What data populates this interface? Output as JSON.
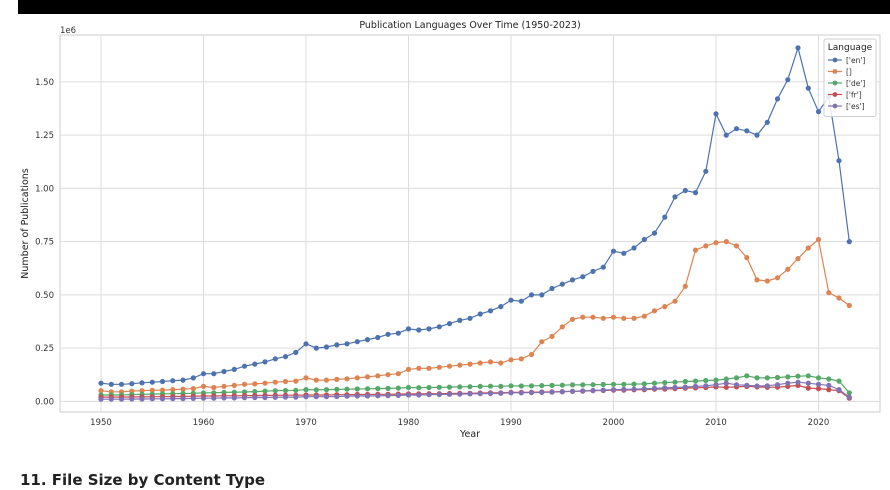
{
  "chart_data": {
    "type": "line",
    "title": "Publication Languages Over Time (1950-2023)",
    "xlabel": "Year",
    "ylabel": "Number of Publications",
    "y_offset_label": "1e6",
    "xlim": [
      1946,
      2026
    ],
    "ylim": [
      -0.05,
      1.72
    ],
    "x_ticks": [
      1950,
      1960,
      1970,
      1980,
      1990,
      2000,
      2010,
      2020
    ],
    "x_tick_labels": [
      "1950",
      "1960",
      "1970",
      "1980",
      "1990",
      "2000",
      "2010",
      "2020"
    ],
    "y_ticks": [
      0,
      0.25,
      0.5,
      0.75,
      1.0,
      1.25,
      1.5
    ],
    "y_tick_labels": [
      "0.00",
      "0.25",
      "0.50",
      "0.75",
      "1.00",
      "1.25",
      "1.50"
    ],
    "grid": true,
    "legend_title": "Language",
    "legend_position": "top-right",
    "x": [
      1950,
      1951,
      1952,
      1953,
      1954,
      1955,
      1956,
      1957,
      1958,
      1959,
      1960,
      1961,
      1962,
      1963,
      1964,
      1965,
      1966,
      1967,
      1968,
      1969,
      1970,
      1971,
      1972,
      1973,
      1974,
      1975,
      1976,
      1977,
      1978,
      1979,
      1980,
      1981,
      1982,
      1983,
      1984,
      1985,
      1986,
      1987,
      1988,
      1989,
      1990,
      1991,
      1992,
      1993,
      1994,
      1995,
      1996,
      1997,
      1998,
      1999,
      2000,
      2001,
      2002,
      2003,
      2004,
      2005,
      2006,
      2007,
      2008,
      2009,
      2010,
      2011,
      2012,
      2013,
      2014,
      2015,
      2016,
      2017,
      2018,
      2019,
      2020,
      2021,
      2022,
      2023
    ],
    "series": [
      {
        "name": "['en']",
        "color": "#4c72b0",
        "values": [
          0.085,
          0.08,
          0.08,
          0.083,
          0.087,
          0.09,
          0.093,
          0.097,
          0.1,
          0.11,
          0.13,
          0.13,
          0.14,
          0.15,
          0.165,
          0.175,
          0.185,
          0.2,
          0.21,
          0.23,
          0.27,
          0.25,
          0.255,
          0.265,
          0.27,
          0.28,
          0.29,
          0.3,
          0.315,
          0.32,
          0.34,
          0.335,
          0.34,
          0.35,
          0.365,
          0.38,
          0.39,
          0.41,
          0.425,
          0.445,
          0.475,
          0.47,
          0.5,
          0.5,
          0.53,
          0.55,
          0.57,
          0.585,
          0.61,
          0.63,
          0.705,
          0.695,
          0.72,
          0.76,
          0.79,
          0.865,
          0.96,
          0.99,
          0.98,
          1.08,
          1.35,
          1.25,
          1.28,
          1.27,
          1.25,
          1.31,
          1.42,
          1.51,
          1.66,
          1.47,
          1.36,
          1.43,
          1.13,
          0.75
        ]
      },
      {
        "name": "[]",
        "color": "#dd8452",
        "values": [
          0.05,
          0.045,
          0.045,
          0.048,
          0.05,
          0.052,
          0.053,
          0.055,
          0.057,
          0.06,
          0.07,
          0.065,
          0.07,
          0.075,
          0.08,
          0.082,
          0.085,
          0.09,
          0.093,
          0.095,
          0.11,
          0.1,
          0.1,
          0.103,
          0.106,
          0.11,
          0.115,
          0.12,
          0.125,
          0.13,
          0.15,
          0.155,
          0.155,
          0.16,
          0.165,
          0.17,
          0.175,
          0.18,
          0.185,
          0.18,
          0.195,
          0.2,
          0.22,
          0.28,
          0.305,
          0.35,
          0.385,
          0.395,
          0.395,
          0.39,
          0.395,
          0.39,
          0.39,
          0.4,
          0.425,
          0.445,
          0.47,
          0.54,
          0.71,
          0.73,
          0.745,
          0.75,
          0.73,
          0.675,
          0.57,
          0.565,
          0.58,
          0.62,
          0.67,
          0.72,
          0.76,
          0.51,
          0.485,
          0.45
        ]
      },
      {
        "name": "['de']",
        "color": "#55a868",
        "values": [
          0.03,
          0.03,
          0.03,
          0.032,
          0.033,
          0.034,
          0.035,
          0.036,
          0.037,
          0.038,
          0.04,
          0.04,
          0.042,
          0.043,
          0.044,
          0.046,
          0.048,
          0.05,
          0.051,
          0.052,
          0.055,
          0.054,
          0.055,
          0.056,
          0.057,
          0.058,
          0.059,
          0.06,
          0.061,
          0.062,
          0.065,
          0.064,
          0.065,
          0.066,
          0.067,
          0.068,
          0.069,
          0.07,
          0.071,
          0.07,
          0.073,
          0.072,
          0.073,
          0.074,
          0.075,
          0.076,
          0.077,
          0.077,
          0.078,
          0.079,
          0.08,
          0.08,
          0.081,
          0.082,
          0.085,
          0.088,
          0.09,
          0.093,
          0.095,
          0.098,
          0.1,
          0.105,
          0.11,
          0.12,
          0.11,
          0.11,
          0.112,
          0.115,
          0.118,
          0.12,
          0.11,
          0.105,
          0.095,
          0.04
        ]
      },
      {
        "name": "['fr']",
        "color": "#c44e52",
        "values": [
          0.02,
          0.02,
          0.02,
          0.021,
          0.021,
          0.022,
          0.022,
          0.023,
          0.023,
          0.024,
          0.025,
          0.025,
          0.026,
          0.026,
          0.027,
          0.027,
          0.028,
          0.028,
          0.029,
          0.029,
          0.03,
          0.03,
          0.03,
          0.031,
          0.031,
          0.032,
          0.032,
          0.033,
          0.033,
          0.034,
          0.035,
          0.035,
          0.036,
          0.036,
          0.037,
          0.038,
          0.038,
          0.039,
          0.04,
          0.04,
          0.042,
          0.042,
          0.043,
          0.044,
          0.045,
          0.046,
          0.047,
          0.048,
          0.05,
          0.051,
          0.053,
          0.053,
          0.054,
          0.055,
          0.057,
          0.058,
          0.06,
          0.062,
          0.063,
          0.065,
          0.068,
          0.066,
          0.068,
          0.07,
          0.068,
          0.066,
          0.067,
          0.07,
          0.075,
          0.062,
          0.06,
          0.055,
          0.05,
          0.015
        ]
      },
      {
        "name": "['es']",
        "color": "#8172b3",
        "values": [
          0.01,
          0.01,
          0.01,
          0.011,
          0.011,
          0.012,
          0.012,
          0.013,
          0.013,
          0.014,
          0.015,
          0.015,
          0.016,
          0.016,
          0.017,
          0.018,
          0.018,
          0.019,
          0.02,
          0.02,
          0.022,
          0.022,
          0.022,
          0.023,
          0.024,
          0.025,
          0.025,
          0.026,
          0.027,
          0.028,
          0.03,
          0.03,
          0.031,
          0.032,
          0.033,
          0.034,
          0.035,
          0.036,
          0.037,
          0.038,
          0.04,
          0.04,
          0.041,
          0.042,
          0.043,
          0.045,
          0.047,
          0.049,
          0.051,
          0.053,
          0.055,
          0.056,
          0.057,
          0.059,
          0.061,
          0.063,
          0.065,
          0.067,
          0.07,
          0.073,
          0.078,
          0.085,
          0.078,
          0.075,
          0.072,
          0.073,
          0.078,
          0.085,
          0.09,
          0.085,
          0.08,
          0.075,
          0.055,
          0.02
        ]
      }
    ]
  },
  "section_heading": "11. File Size by Content Type"
}
